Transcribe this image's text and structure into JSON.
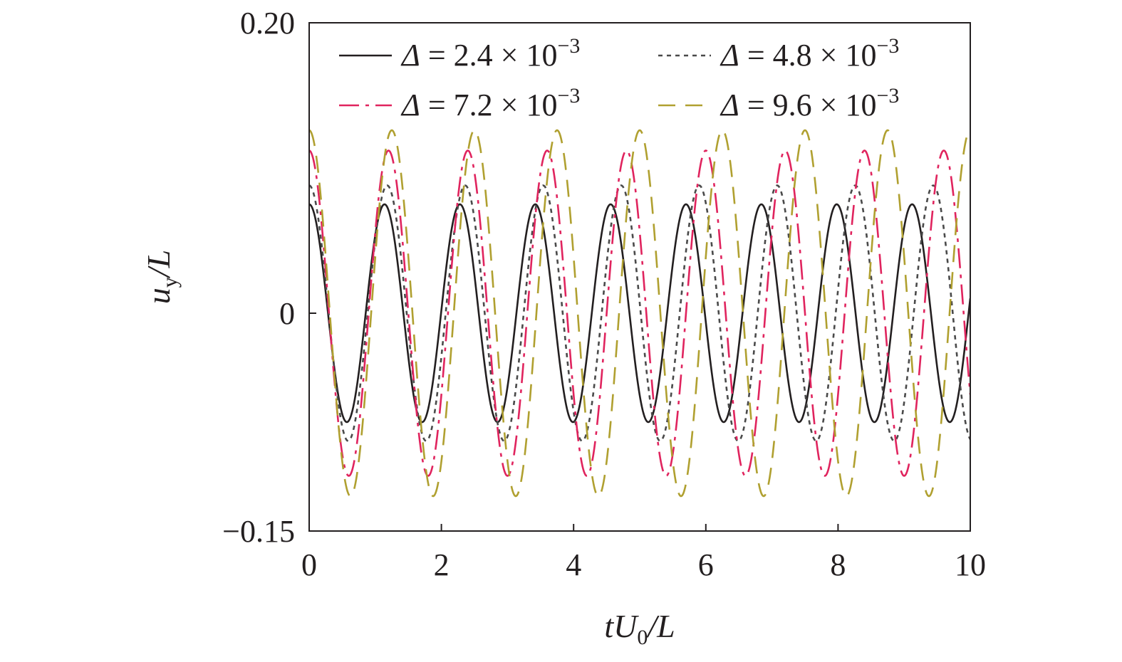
{
  "chart_data": {
    "type": "line",
    "xlabel": {
      "main": "tU",
      "sub": "0",
      "tail": "/L"
    },
    "ylabel": {
      "main": "u",
      "sub": "y",
      "tail": "/L"
    },
    "xlim": [
      0,
      10
    ],
    "ylim": [
      -0.15,
      0.2
    ],
    "x_ticks": [
      0,
      2,
      4,
      6,
      8,
      10
    ],
    "y_ticks": [
      -0.15,
      0,
      0.2
    ],
    "y_tick_labels": [
      "−0.15",
      "0",
      "0.20"
    ],
    "grid": false,
    "legend_position": "top",
    "legend_columns": 2,
    "series": [
      {
        "name": "Δ = 2.4 × 10",
        "name_parts": {
          "sym": "Δ",
          "rest": " = 2.4 × 10",
          "exp": "−3"
        },
        "color": "#231f20",
        "dash": "none",
        "amplitude": 0.075,
        "period": 1.14,
        "start_value": 0.075
      },
      {
        "name": "Δ = 4.8 × 10",
        "name_parts": {
          "sym": "Δ",
          "rest": " = 4.8 × 10",
          "exp": "−3"
        },
        "color": "#4a4a4a",
        "dash": "dotted",
        "amplitude": 0.088,
        "period": 1.18,
        "start_value": 0.088
      },
      {
        "name": "Δ = 7.2 × 10",
        "name_parts": {
          "sym": "Δ",
          "rest": " = 7.2 × 10",
          "exp": "−3"
        },
        "color": "#e0245e",
        "dash": "dashdot",
        "amplitude": 0.112,
        "period": 1.2,
        "start_value": 0.112
      },
      {
        "name": "Δ = 9.6 × 10",
        "name_parts": {
          "sym": "Δ",
          "rest": " = 9.6 × 10",
          "exp": "−3"
        },
        "color": "#b0a030",
        "dash": "dashed",
        "amplitude": 0.126,
        "period": 1.25,
        "start_value": 0.126
      }
    ]
  }
}
